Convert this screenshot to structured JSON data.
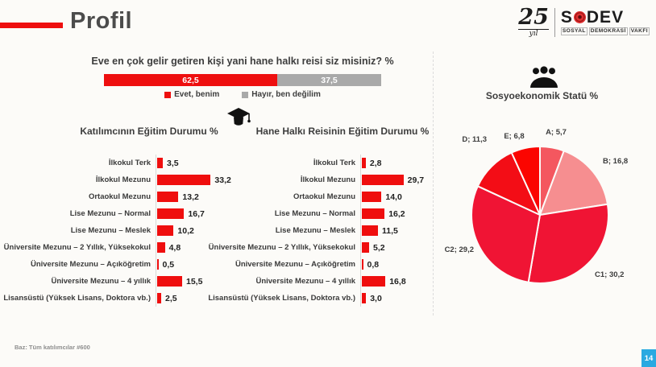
{
  "header": {
    "title": "Profil",
    "logo": {
      "years": "25",
      "years_label": "yıl",
      "brand": "SODEV",
      "brand_prefix": "S",
      "brand_suffix": "DEV",
      "subtitle_words": [
        "SOSYAL",
        "DEMOKRASİ",
        "VAKFI"
      ]
    }
  },
  "question": {
    "title": "Eve en çok gelir getiren kişi yani hane halkı reisi siz misiniz? %",
    "legend": [
      {
        "label": "Evet, benim",
        "color": "#EE0F0F"
      },
      {
        "label": "Hayır, ben değilim",
        "color": "#A9A9A9"
      }
    ]
  },
  "colors": {
    "accent_red": "#EE0F0F",
    "bar_red": "#EF0E0E",
    "gray": "#A9A9A9",
    "badge_blue": "#29A9E1"
  },
  "footer": {
    "base_note": "Baz: Tüm katılımcılar #600",
    "page_number": "14"
  },
  "chart_data": [
    {
      "type": "bar",
      "display": "stacked-horizontal",
      "title": "Eve en çok gelir getiren kişi yani hane halkı reisi siz misiniz? %",
      "segments": [
        {
          "name": "Evet, benim",
          "value": 62.5,
          "label": "62,5",
          "color": "#EE0F0F"
        },
        {
          "name": "Hayır, ben değilim",
          "value": 37.5,
          "label": "37,5",
          "color": "#A9A9A9"
        }
      ]
    },
    {
      "type": "bar",
      "orientation": "horizontal",
      "title": "Katılımcının Eğitim Durumu %",
      "categories": [
        "İlkokul Terk",
        "İlkokul Mezunu",
        "Ortaokul Mezunu",
        "Lise Mezunu – Normal",
        "Lise Mezunu – Meslek",
        "Üniversite Mezunu – 2 Yıllık, Yüksekokul",
        "Üniversite Mezunu – Açıköğretim",
        "Üniversite Mezunu – 4 yıllık",
        "Lisansüstü (Yüksek Lisans, Doktora vb.)"
      ],
      "values": [
        3.5,
        33.2,
        13.2,
        16.7,
        10.2,
        4.8,
        0.5,
        15.5,
        2.5
      ],
      "labels": [
        "3,5",
        "33,2",
        "13,2",
        "16,7",
        "10,2",
        "4,8",
        "0,5",
        "15,5",
        "2,5"
      ],
      "bar_color": "#EF0E0E"
    },
    {
      "type": "bar",
      "orientation": "horizontal",
      "title": "Hane Halkı Reisinin Eğitim Durumu %",
      "categories": [
        "İlkokul Terk",
        "İlkokul Mezunu",
        "Ortaokul Mezunu",
        "Lise Mezunu – Normal",
        "Lise Mezunu – Meslek",
        "Üniversite Mezunu – 2 Yıllık, Yüksekokul",
        "Üniversite Mezunu – Açıköğretim",
        "Üniversite Mezunu – 4 yıllık",
        "Lisansüstü (Yüksek Lisans, Doktora vb.)"
      ],
      "values": [
        2.8,
        29.7,
        14.0,
        16.2,
        11.5,
        5.2,
        0.8,
        16.8,
        3.0
      ],
      "labels": [
        "2,8",
        "29,7",
        "14,0",
        "16,2",
        "11,5",
        "5,2",
        "0,8",
        "16,8",
        "3,0"
      ],
      "bar_color": "#EF0E0E"
    },
    {
      "type": "pie",
      "title": "Sosyoekonomik Statü %",
      "categories": [
        "A",
        "B",
        "C1",
        "C2",
        "D",
        "E"
      ],
      "values": [
        5.7,
        16.8,
        30.2,
        29.2,
        11.3,
        6.8
      ],
      "labels": [
        "A; 5,7",
        "B; 16,8",
        "C1; 30,2",
        "C2; 29,2",
        "D; 11,3",
        "E; 6,8"
      ],
      "colors": [
        "#F4575F",
        "#F68E90",
        "#F01434",
        "#F01434",
        "#F30D16",
        "#FB0500"
      ],
      "start_angle_deg": 0,
      "direction": "clockwise",
      "legend_position": "outside-labels"
    }
  ]
}
